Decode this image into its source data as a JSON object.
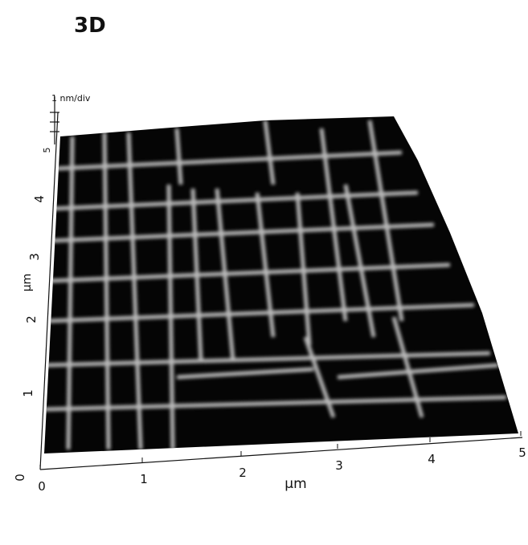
{
  "title": "3D",
  "z_axis": {
    "scale": "1 nm/div"
  },
  "x_axis": {
    "label": "μm",
    "ticks": [
      "0",
      "1",
      "2",
      "3",
      "4",
      "5"
    ]
  },
  "y_axis": {
    "label": "μm",
    "ticks": [
      "0",
      "1",
      "2",
      "3",
      "4",
      "5"
    ]
  }
}
